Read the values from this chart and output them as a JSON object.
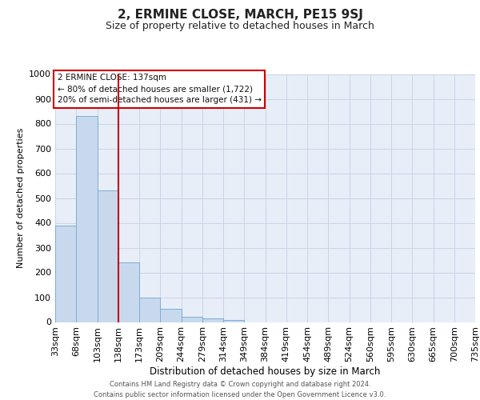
{
  "title": "2, ERMINE CLOSE, MARCH, PE15 9SJ",
  "subtitle": "Size of property relative to detached houses in March",
  "xlabel": "Distribution of detached houses by size in March",
  "ylabel": "Number of detached properties",
  "bar_color": "#c8d9ee",
  "bar_edge_color": "#7badd4",
  "vline_color": "#cc0000",
  "annotation_lines": [
    "2 ERMINE CLOSE: 137sqm",
    "← 80% of detached houses are smaller (1,722)",
    "20% of semi-detached houses are larger (431) →"
  ],
  "bin_labels": [
    "33sqm",
    "68sqm",
    "103sqm",
    "138sqm",
    "173sqm",
    "209sqm",
    "244sqm",
    "279sqm",
    "314sqm",
    "349sqm",
    "384sqm",
    "419sqm",
    "454sqm",
    "489sqm",
    "524sqm",
    "560sqm",
    "595sqm",
    "630sqm",
    "665sqm",
    "700sqm",
    "735sqm"
  ],
  "bar_heights": [
    390,
    830,
    530,
    240,
    97,
    53,
    22,
    14,
    8,
    0,
    0,
    0,
    0,
    0,
    0,
    0,
    0,
    0,
    0,
    0
  ],
  "ylim": [
    0,
    1000
  ],
  "yticks": [
    0,
    100,
    200,
    300,
    400,
    500,
    600,
    700,
    800,
    900,
    1000
  ],
  "grid_color": "#c8d4e8",
  "background_color": "#e8eef8",
  "footer_line1": "Contains HM Land Registry data © Crown copyright and database right 2024.",
  "footer_line2": "Contains public sector information licensed under the Open Government Licence v3.0."
}
